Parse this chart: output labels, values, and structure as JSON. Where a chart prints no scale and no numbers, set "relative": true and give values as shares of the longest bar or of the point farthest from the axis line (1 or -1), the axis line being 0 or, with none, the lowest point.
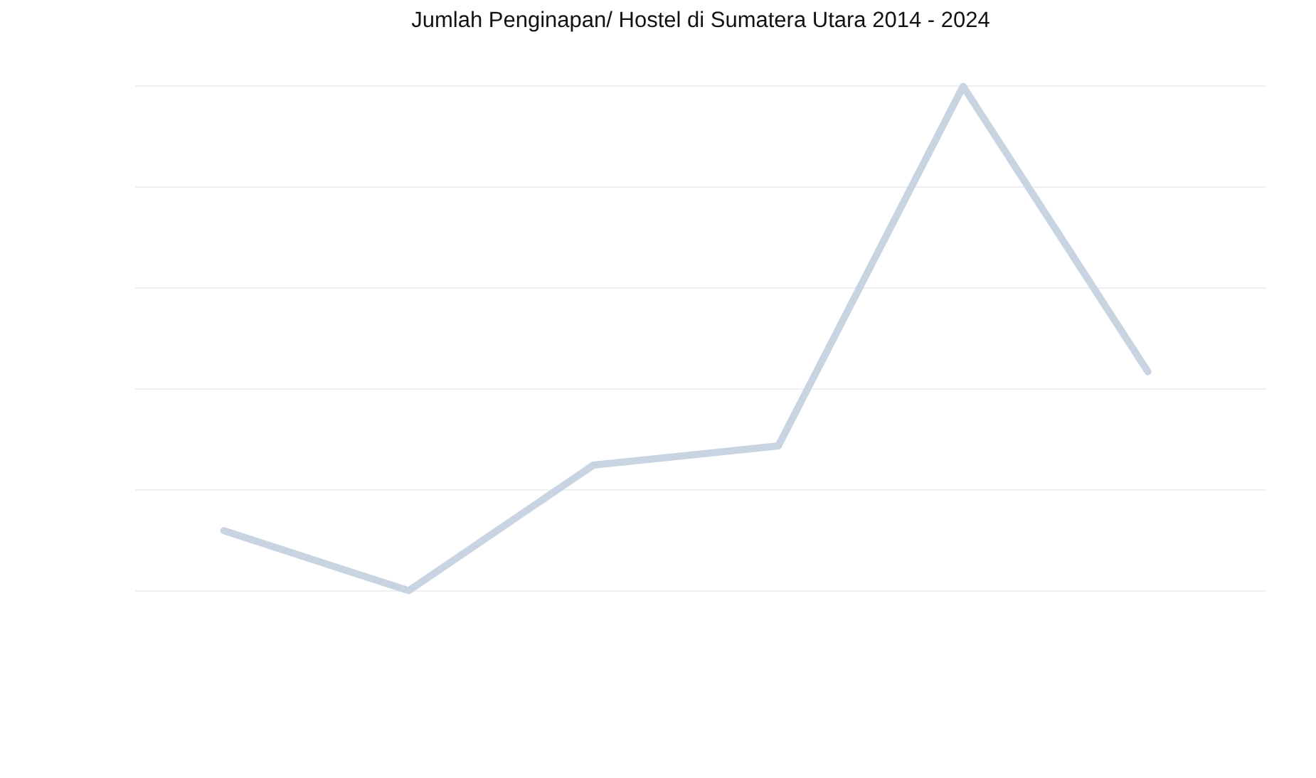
{
  "chart_data": {
    "type": "line",
    "title": "Jumlah Penginapan/ Hostel di Sumatera Utara 2014 - 2024",
    "categories": [
      null,
      null,
      null,
      null,
      null,
      null
    ],
    "series": [
      {
        "color": "#c8d4e1",
        "values": [
          0.119,
          0,
          0.249,
          0.287,
          1,
          0.434
        ]
      }
    ],
    "relative": true,
    "grid": "y",
    "marker": "none",
    "line_style": "solid"
  }
}
